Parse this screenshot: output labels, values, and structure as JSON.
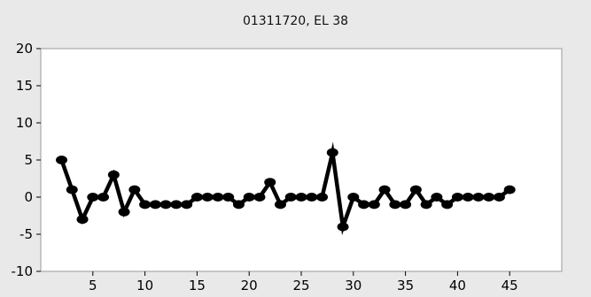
{
  "chart_data": {
    "type": "line",
    "title": "01311720, EL 38",
    "xlabel": "",
    "ylabel": "",
    "xlim": [
      0,
      50
    ],
    "ylim": [
      -10,
      20
    ],
    "x_ticks": [
      5,
      10,
      15,
      20,
      25,
      30,
      35,
      40,
      45
    ],
    "y_ticks": [
      20,
      15,
      10,
      5,
      0,
      -5,
      -10
    ],
    "grid": false,
    "legend": "none",
    "line_color": "#000000",
    "background": "#e9e9e9",
    "plot_background": "#ffffff",
    "series": [
      {
        "x": [
          2,
          3,
          4,
          5,
          6,
          7,
          8,
          9,
          10,
          11,
          12,
          13,
          14,
          15,
          16,
          17,
          18,
          19,
          20,
          21,
          22,
          23,
          24,
          25,
          26,
          27,
          28,
          29,
          30,
          31,
          32,
          33,
          34,
          35,
          36,
          37,
          38,
          39,
          40,
          41,
          42,
          43,
          44,
          45
        ],
        "y": [
          5,
          1,
          -3,
          0,
          0,
          3,
          -2,
          1,
          -1,
          -1,
          -1,
          -1,
          -1,
          0,
          0,
          0,
          0,
          -1,
          0,
          0,
          2,
          -1,
          0,
          0,
          0,
          0,
          6,
          -4,
          0,
          -1,
          -1,
          1,
          -1,
          -1,
          1,
          -1,
          0,
          -1,
          0,
          0,
          0,
          0,
          0,
          1
        ]
      }
    ]
  }
}
